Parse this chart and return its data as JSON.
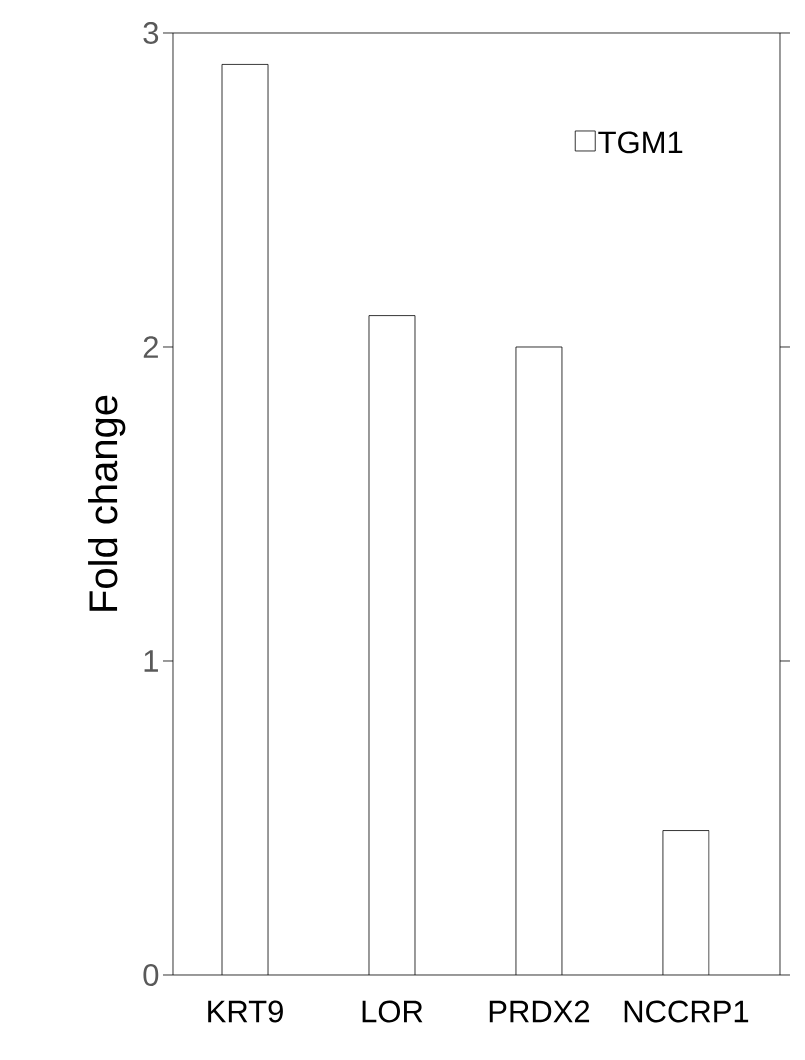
{
  "chart_data": {
    "type": "bar",
    "ylabel": "Fold change",
    "categories": [
      "KRT9",
      "LOR",
      "PRDX2",
      "NCCRP1"
    ],
    "series": [
      {
        "name": "TGM1",
        "color": "#ffffff",
        "values": [
          2.9,
          2.1,
          2.0,
          0.46
        ]
      }
    ],
    "ylim": [
      0,
      3
    ],
    "yticks": [
      0,
      1,
      2,
      3
    ],
    "legend": "top right"
  }
}
